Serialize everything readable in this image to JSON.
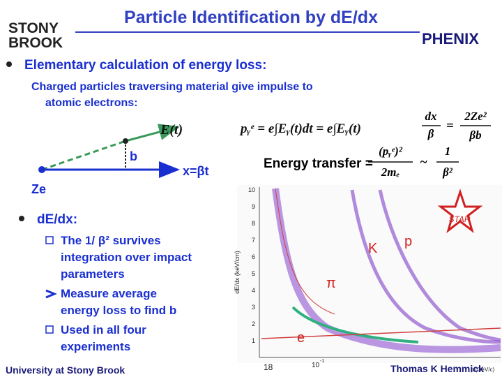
{
  "header": {
    "title": "Particle Identification by dE/dx",
    "left_logo": [
      "STONY",
      "BROOK"
    ],
    "right_logo": "PHENIX"
  },
  "intro": {
    "bullet": "Elementary calculation of energy loss:",
    "lines": [
      "Charged particles traversing material give impulse to",
      "atomic electrons:"
    ]
  },
  "diagram": {
    "field": "E(t)",
    "impact": "b",
    "path": "x=βt",
    "charge": "Ze"
  },
  "formulas": {
    "impulse": {
      "left": "pᵧᵉ = e∫Eᵧ(t)dt = e∫Eᵧ(t)",
      "num1": "dx",
      "den1": "β",
      "eq": "=",
      "num2": "2Ze²",
      "den2": "βb"
    },
    "energy": {
      "left": "Energy transfer =",
      "num1": "(pᵧᵉ)²",
      "den1": "2mₑ",
      "approx": "~",
      "num2": "1",
      "den2": "β²"
    }
  },
  "dedx": {
    "bullet": "dE/dx:",
    "items": [
      {
        "lines": [
          "The 1/ β² survives",
          "integration over impact",
          "parameters"
        ]
      },
      {
        "lines": [
          "Measure average",
          "energy loss to find b"
        ]
      },
      {
        "lines": [
          "Used in all four",
          "experiments"
        ]
      }
    ]
  },
  "plot": {
    "y_label": "dE/dx (keV/cm)",
    "y_ticks": [
      "10",
      "9",
      "8",
      "7",
      "6",
      "5",
      "4",
      "3",
      "2",
      "1"
    ],
    "x_tick": "10",
    "x_tick_exp": "-1",
    "x_label": "p (GeV/c)",
    "experiment": "STAR",
    "particles": [
      "K",
      "p",
      "π",
      "e"
    ]
  },
  "footer": {
    "left": "University at Stony Brook",
    "page": "18",
    "right": "Thomas K Hemmick"
  }
}
